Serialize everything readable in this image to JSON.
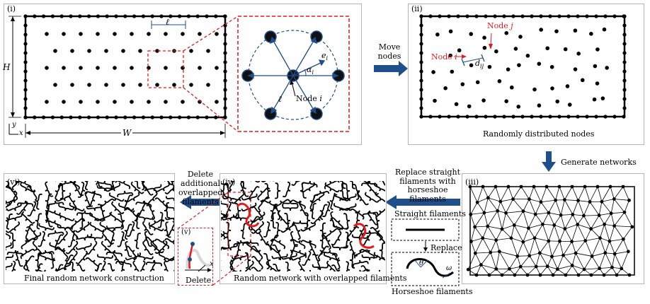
{
  "panels": {
    "i": {
      "tag": "(i)",
      "H": "H",
      "W": "W",
      "ell": "ℓ",
      "y": "y",
      "x": "x",
      "zoom": {
        "ei": "e",
        "ei_sub": "i",
        "alpha": "α",
        "alpha_sub": "i",
        "ell": "ℓ",
        "node": "Node",
        "node_i": "i"
      }
    },
    "ii": {
      "tag": "(ii)",
      "node_j": "Node j",
      "node_i": "Node i",
      "dij": "d",
      "dij_sub": "ij",
      "caption": "Randomly distributed nodes"
    },
    "iii": {
      "tag": "(iii)"
    },
    "iv": {
      "tag": "(iv)",
      "caption": "Random network with overlapped filaments"
    },
    "v": {
      "tag": "(v)",
      "x": "x",
      "caption": "Delete"
    },
    "vi": {
      "tag": "(vi)",
      "caption": "Final random network construction"
    }
  },
  "steps": {
    "move_nodes": "Move nodes",
    "generate_networks": "Generate networks",
    "replace": "Replace straight filaments with horseshoe filaments",
    "delete": "Delete additional overlapped filaments",
    "straight_filaments": "Straight filaments",
    "replace_label": "Replace",
    "horseshoe_filaments": "Horseshoe filaments",
    "theta": "θ",
    "omega": "ω"
  },
  "colors": {
    "accent_blue": "#1f4e8c",
    "highlight_red": "#e41a1c",
    "border_gray": "#b5b5b5"
  }
}
